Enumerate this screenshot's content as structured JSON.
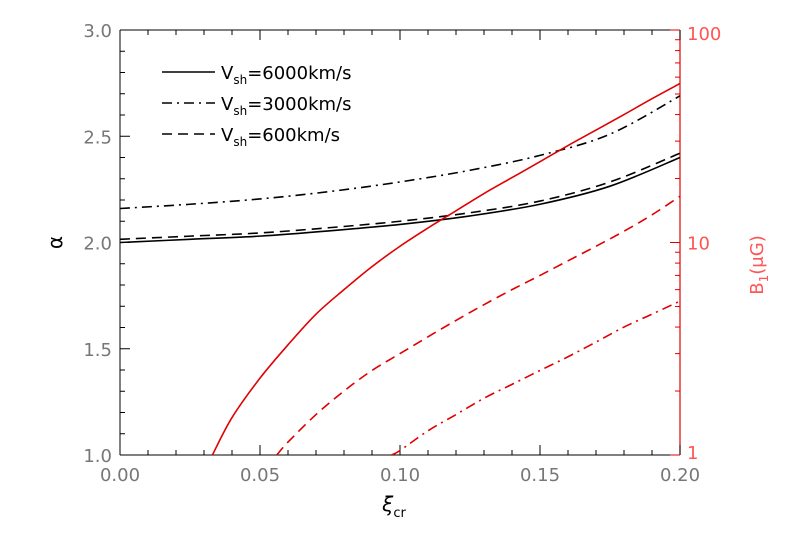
{
  "chart_data": {
    "type": "line",
    "title": "",
    "xlabel": "ξ",
    "xlabel_sub": "cr",
    "ylabel_left": "α",
    "ylabel_right": "B",
    "ylabel_right_sub": "1",
    "ylabel_right_rest": "(μG)",
    "xlim": [
      0.0,
      0.2
    ],
    "ylim_left": [
      1.0,
      3.0
    ],
    "ylim_right": [
      1,
      100
    ],
    "right_scale": "log",
    "grid": false,
    "x_ticks": [
      "0.00",
      "0.05",
      "0.10",
      "0.15",
      "0.20"
    ],
    "y_left_ticks": [
      "1.0",
      "1.5",
      "2.0",
      "2.5",
      "3.0"
    ],
    "y_right_ticks": [
      "1",
      "10",
      "100"
    ],
    "legend_position": "top-left",
    "legend": [
      {
        "V": "V",
        "sub": "sh",
        "text": "=6000km/s",
        "dash": "solid"
      },
      {
        "V": "V",
        "sub": "sh",
        "text": "=3000km/s",
        "dash": "dashdot"
      },
      {
        "V": "V",
        "sub": "sh",
        "text": "=600km/s",
        "dash": "dashed"
      }
    ],
    "alpha_series": [
      {
        "name": "V_sh=6000km/s",
        "axis": "left",
        "dash": "solid",
        "color": "#000000",
        "x": [
          0.0,
          0.025,
          0.05,
          0.075,
          0.1,
          0.125,
          0.15,
          0.175,
          0.2
        ],
        "y": [
          2.0,
          2.015,
          2.03,
          2.055,
          2.085,
          2.125,
          2.18,
          2.265,
          2.4
        ]
      },
      {
        "name": "V_sh=3000km/s",
        "axis": "left",
        "dash": "dashdot",
        "color": "#000000",
        "x": [
          0.0,
          0.025,
          0.05,
          0.075,
          0.1,
          0.125,
          0.15,
          0.175,
          0.2
        ],
        "y": [
          2.16,
          2.18,
          2.205,
          2.24,
          2.285,
          2.34,
          2.41,
          2.51,
          2.69
        ]
      },
      {
        "name": "V_sh=600km/s",
        "axis": "left",
        "dash": "dashed",
        "color": "#000000",
        "x": [
          0.0,
          0.025,
          0.05,
          0.075,
          0.1,
          0.125,
          0.15,
          0.175,
          0.2
        ],
        "y": [
          2.015,
          2.03,
          2.045,
          2.07,
          2.1,
          2.14,
          2.195,
          2.285,
          2.42
        ]
      }
    ],
    "b_series": [
      {
        "name": "V_sh=6000km/s",
        "axis": "right",
        "dash": "solid",
        "color": "#e00000",
        "x": [
          0.033,
          0.04,
          0.05,
          0.06,
          0.07,
          0.08,
          0.09,
          0.1,
          0.11,
          0.12,
          0.13,
          0.14,
          0.15,
          0.16,
          0.17,
          0.18,
          0.19,
          0.2
        ],
        "y": [
          1.0,
          1.5,
          2.3,
          3.3,
          4.6,
          6.0,
          7.7,
          9.6,
          11.7,
          14.1,
          17.0,
          20.2,
          24.0,
          28.6,
          33.8,
          40.0,
          47.5,
          56.0
        ]
      },
      {
        "name": "V_sh=600km/s",
        "axis": "right",
        "dash": "dashed",
        "color": "#e00000",
        "x": [
          0.056,
          0.06,
          0.07,
          0.08,
          0.09,
          0.1,
          0.11,
          0.12,
          0.13,
          0.14,
          0.15,
          0.16,
          0.17,
          0.18,
          0.19,
          0.2
        ],
        "y": [
          1.0,
          1.15,
          1.55,
          2.0,
          2.5,
          3.0,
          3.6,
          4.3,
          5.1,
          6.0,
          7.0,
          8.2,
          9.6,
          11.3,
          13.5,
          16.5
        ]
      },
      {
        "name": "V_sh=3000km/s",
        "axis": "right",
        "dash": "dashdot",
        "color": "#e00000",
        "x": [
          0.097,
          0.1,
          0.11,
          0.12,
          0.13,
          0.14,
          0.15,
          0.16,
          0.17,
          0.18,
          0.19,
          0.2
        ],
        "y": [
          1.0,
          1.05,
          1.3,
          1.55,
          1.85,
          2.15,
          2.5,
          2.9,
          3.4,
          4.0,
          4.6,
          5.3
        ]
      }
    ],
    "colors": {
      "axis_left": "#000000",
      "axis_right": "#e00000",
      "tick_label": "#777777",
      "right_label": "#ff5555"
    }
  }
}
